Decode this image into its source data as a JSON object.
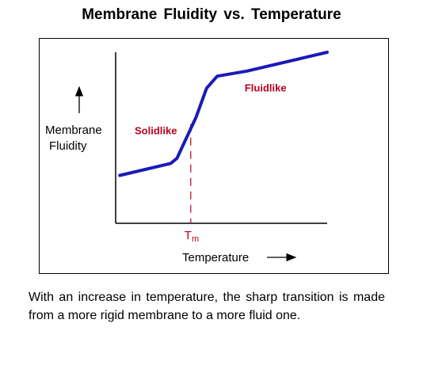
{
  "chart_data": {
    "type": "line",
    "title": "Membrane  Fluidity  vs.  Temperature",
    "xlabel": "Temperature",
    "ylabel": [
      "Membrane",
      "Fluidity"
    ],
    "x": [
      0.02,
      0.26,
      0.29,
      0.38,
      0.43,
      0.48,
      0.62,
      1.0
    ],
    "y": [
      0.28,
      0.35,
      0.38,
      0.62,
      0.79,
      0.86,
      0.89,
      1.0
    ],
    "xlim": [
      0,
      1
    ],
    "ylim": [
      0,
      1
    ],
    "marker_x": 0.355,
    "marker_label_main": "T",
    "marker_label_sub": "m",
    "series_color": "#1a1ab8",
    "label_color": "#b8001f",
    "annotations": [
      {
        "text": "Solidlike",
        "x": 0.09,
        "y": 0.52
      },
      {
        "text": "Fluidlike",
        "x": 0.61,
        "y": 0.77
      }
    ],
    "grid": false,
    "legend": "none"
  },
  "caption": "With an increase in temperature, the sharp transition is made from a more rigid membrane to a more fluid one."
}
